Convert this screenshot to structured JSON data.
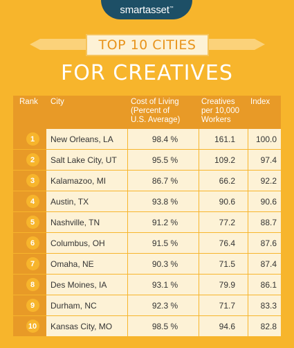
{
  "brand": {
    "logo_text": "smartasset",
    "trademark": "™"
  },
  "title": {
    "line1": "TOP 10 CITIES",
    "line2": "FOR CREATIVES"
  },
  "table": {
    "headers": {
      "rank": "Rank",
      "city": "City",
      "cost_lines": [
        "Cost of Living",
        "(Percent of",
        "U.S. Average)"
      ],
      "creatives_lines": [
        "Creatives",
        "per 10,000",
        "Workers"
      ],
      "index": "Index"
    },
    "rows": [
      {
        "rank": "1",
        "city": "New Orleans, LA",
        "cost": "98.4 %",
        "creatives": "161.1",
        "index": "100.0"
      },
      {
        "rank": "2",
        "city": "Salt Lake City, UT",
        "cost": "95.5 %",
        "creatives": "109.2",
        "index": "97.4"
      },
      {
        "rank": "3",
        "city": "Kalamazoo, MI",
        "cost": "86.7 %",
        "creatives": "66.2",
        "index": "92.2"
      },
      {
        "rank": "4",
        "city": "Austin, TX",
        "cost": "93.8 %",
        "creatives": "90.6",
        "index": "90.6"
      },
      {
        "rank": "5",
        "city": "Nashville, TN",
        "cost": "91.2 %",
        "creatives": "77.2",
        "index": "88.7"
      },
      {
        "rank": "6",
        "city": "Columbus, OH",
        "cost": "91.5 %",
        "creatives": "76.4",
        "index": "87.6"
      },
      {
        "rank": "7",
        "city": "Omaha, NE",
        "cost": "90.3 %",
        "creatives": "71.5",
        "index": "87.4"
      },
      {
        "rank": "8",
        "city": "Des Moines, IA",
        "cost": "93.1 %",
        "creatives": "79.9",
        "index": "86.1"
      },
      {
        "rank": "9",
        "city": "Durham, NC",
        "cost": "92.3 %",
        "creatives": "71.7",
        "index": "83.3"
      },
      {
        "rank": "10",
        "city": "Kansas City, MO",
        "cost": "98.5 %",
        "creatives": "94.6",
        "index": "82.8"
      }
    ]
  },
  "colors": {
    "background": "#f7b52c",
    "header": "#e89a27",
    "row": "#fdf2d6",
    "logo_tab": "#1d4f66",
    "title_text": "#e8931a"
  }
}
